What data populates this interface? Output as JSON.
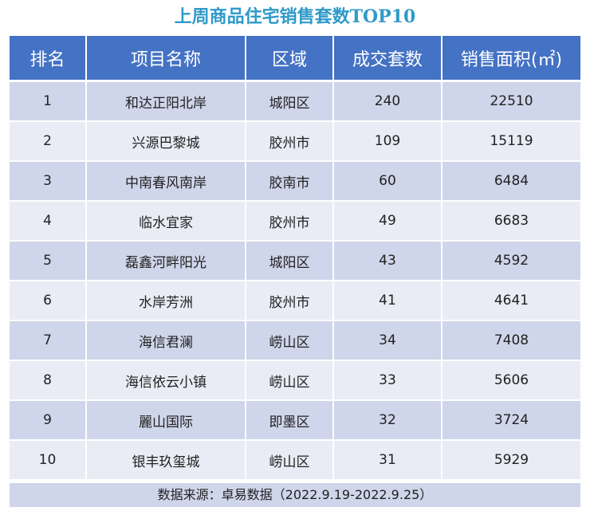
{
  "chart_data": {
    "type": "table",
    "title": "上周商品住宅销售套数TOP10",
    "columns": [
      "排名",
      "项目名称",
      "区域",
      "成交套数",
      "销售面积(㎡)"
    ],
    "rows": [
      [
        "1",
        "和达正阳北岸",
        "城阳区",
        "240",
        "22510"
      ],
      [
        "2",
        "兴源巴黎城",
        "胶州市",
        "109",
        "15119"
      ],
      [
        "3",
        "中南春风南岸",
        "胶南市",
        "60",
        "6484"
      ],
      [
        "4",
        "临水宜家",
        "胶州市",
        "49",
        "6683"
      ],
      [
        "5",
        "磊鑫河畔阳光",
        "城阳区",
        "43",
        "4592"
      ],
      [
        "6",
        "水岸芳洲",
        "胶州市",
        "41",
        "4641"
      ],
      [
        "7",
        "海信君澜",
        "崂山区",
        "34",
        "7408"
      ],
      [
        "8",
        "海信依云小镇",
        "崂山区",
        "33",
        "5606"
      ],
      [
        "9",
        "麗山国际",
        "即墨区",
        "32",
        "3724"
      ],
      [
        "10",
        "银丰玖玺城",
        "崂山区",
        "31",
        "5929"
      ]
    ],
    "source": "数据来源：卓易数据（2022.9.19-2022.9.25）"
  },
  "colors": {
    "title": "#2f9ac9",
    "header_bg": "#4472c4",
    "row_dark": "#cfd5ea",
    "row_light": "#e9ebf5"
  }
}
